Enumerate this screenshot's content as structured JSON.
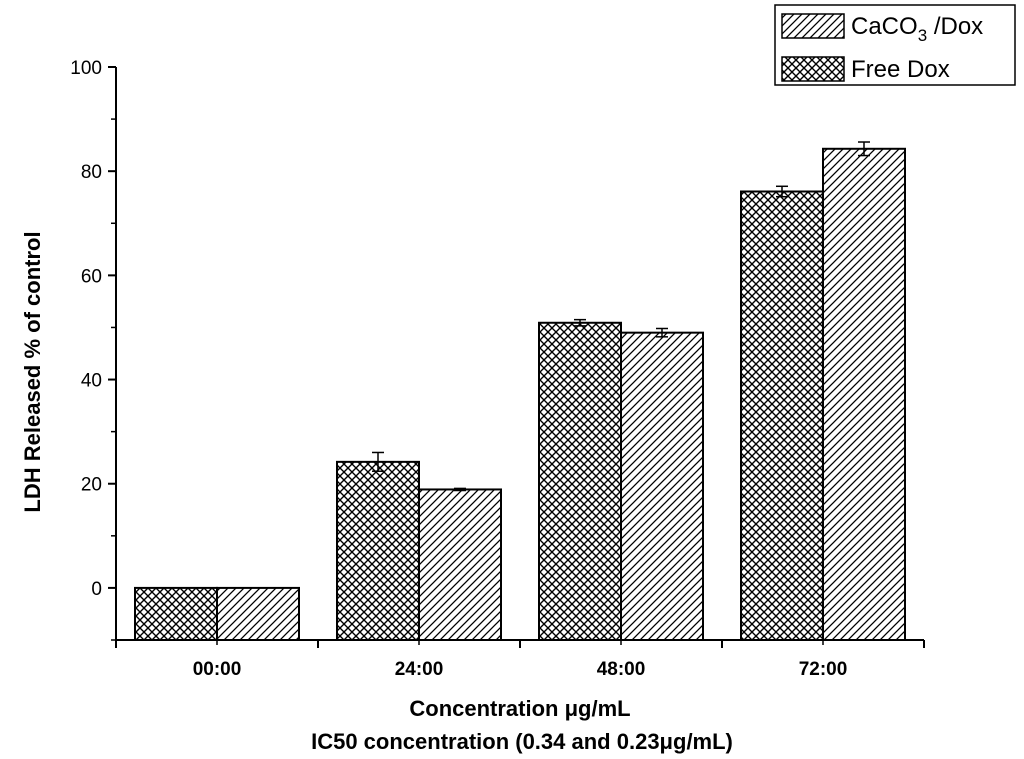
{
  "chart_data": {
    "type": "bar",
    "categories": [
      "00:00",
      "24:00",
      "48:00",
      "72:00"
    ],
    "series": [
      {
        "name": "Free Dox",
        "pattern": "crosshatch",
        "values": [
          0,
          24.2,
          50.9,
          76.1
        ],
        "errors": [
          0,
          1.8,
          0.6,
          1.0
        ]
      },
      {
        "name": "CaCO3 /Dox",
        "pattern": "diagonal",
        "values": [
          0,
          18.9,
          49.0,
          84.3
        ],
        "errors": [
          0,
          0.2,
          0.8,
          1.3
        ]
      }
    ],
    "legend": [
      {
        "pattern": "diagonal",
        "base": "CaCO",
        "sub": "3",
        "rest": " /Dox"
      },
      {
        "pattern": "crosshatch",
        "base": "Free Dox",
        "sub": "",
        "rest": ""
      }
    ],
    "legend_position": "top-right",
    "xlabel": "Concentration μg/mL",
    "xlabel2": "IC50 concentration (0.34 and 0.23μg/mL)",
    "ylabel": "LDH Released % of control",
    "ylim": [
      -10,
      100
    ],
    "yticks": [
      "0",
      "20",
      "40",
      "60",
      "80",
      "100"
    ],
    "grid": false,
    "colors": {
      "bar_fill": "#ffffff",
      "stroke": "#000000"
    }
  }
}
